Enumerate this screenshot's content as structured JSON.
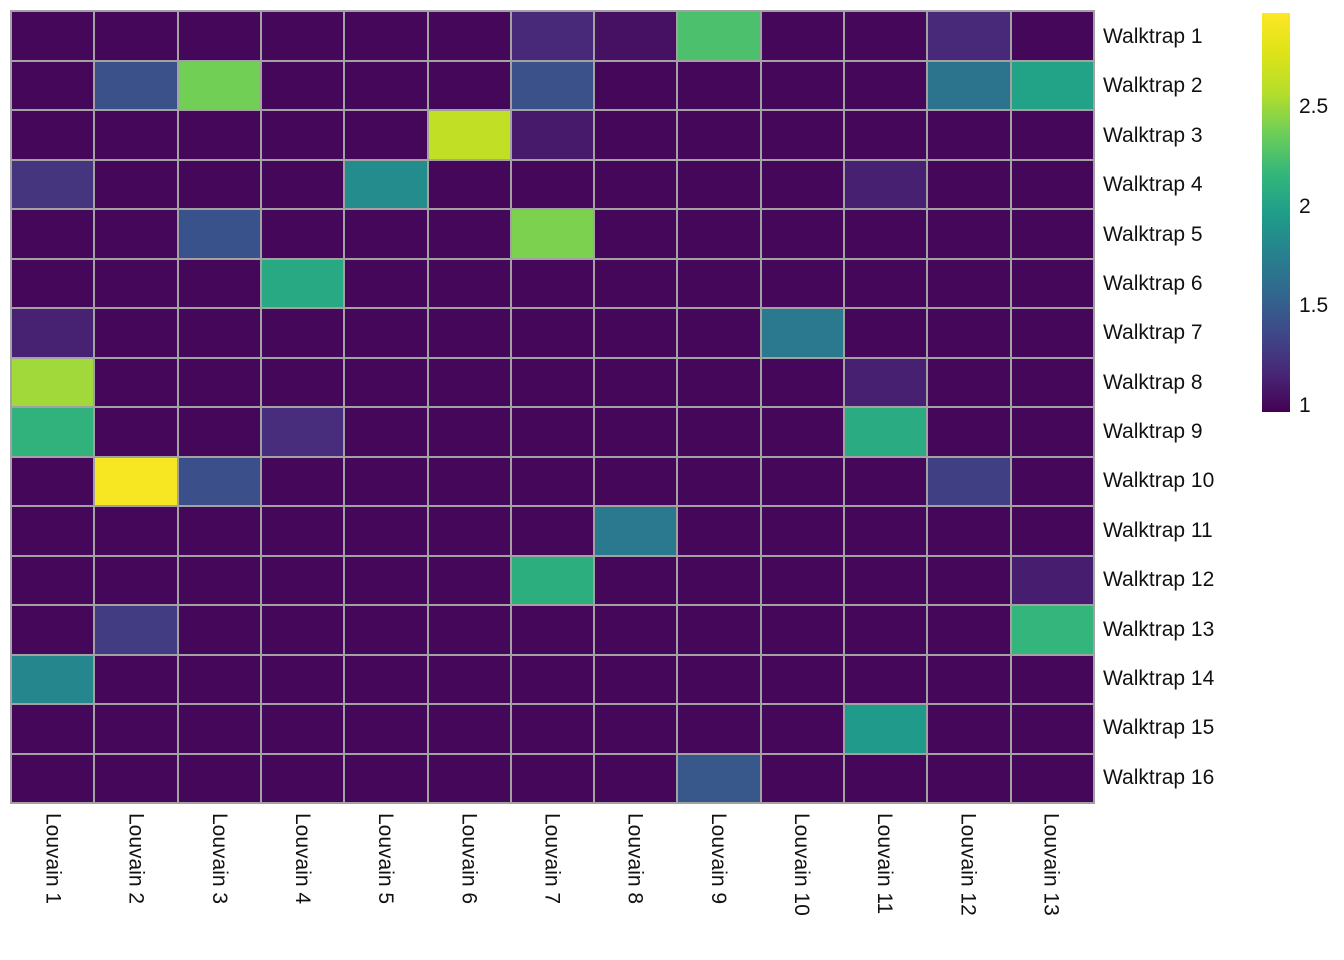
{
  "chart_data": {
    "type": "heatmap",
    "title": "",
    "xlabel": "",
    "ylabel": "",
    "rows": [
      "Walktrap 1",
      "Walktrap 2",
      "Walktrap 3",
      "Walktrap 4",
      "Walktrap 5",
      "Walktrap 6",
      "Walktrap 7",
      "Walktrap 8",
      "Walktrap 9",
      "Walktrap 10",
      "Walktrap 11",
      "Walktrap 12",
      "Walktrap 13",
      "Walktrap 14",
      "Walktrap 15",
      "Walktrap 16"
    ],
    "cols": [
      "Louvain 1",
      "Louvain 2",
      "Louvain 3",
      "Louvain 4",
      "Louvain 5",
      "Louvain 6",
      "Louvain 7",
      "Louvain 8",
      "Louvain 9",
      "Louvain 10",
      "Louvain 11",
      "Louvain 12",
      "Louvain 13"
    ],
    "values": [
      [
        1,
        1,
        1,
        1,
        1,
        1,
        1.17,
        1.05,
        2.25,
        1,
        1,
        1.17,
        1
      ],
      [
        1,
        1.42,
        2.38,
        1,
        1,
        1,
        1.42,
        1,
        1,
        1,
        1,
        1.66,
        2.0
      ],
      [
        1,
        1,
        1,
        1,
        1,
        2.63,
        1.1,
        1,
        1,
        1,
        1,
        1,
        1
      ],
      [
        1.24,
        1,
        1,
        1,
        1.84,
        1,
        1,
        1,
        1,
        1,
        1.13,
        1,
        1
      ],
      [
        1,
        1,
        1.43,
        1,
        1,
        1,
        2.41,
        1,
        1,
        1,
        1,
        1,
        1
      ],
      [
        1,
        1,
        1,
        2.05,
        1,
        1,
        1,
        1,
        1,
        1,
        1,
        1,
        1
      ],
      [
        1.14,
        1,
        1,
        1,
        1,
        1,
        1,
        1,
        1,
        1.7,
        1,
        1,
        1
      ],
      [
        2.51,
        1,
        1,
        1,
        1,
        1,
        1,
        1,
        1,
        1,
        1.13,
        1,
        1
      ],
      [
        2.13,
        1,
        1,
        1.2,
        1,
        1,
        1,
        1,
        1,
        1,
        2.07,
        1,
        1
      ],
      [
        1,
        2.93,
        1.41,
        1,
        1,
        1,
        1,
        1,
        1,
        1,
        1,
        1.31,
        1
      ],
      [
        1,
        1,
        1,
        1,
        1,
        1,
        1,
        1.7,
        1,
        1,
        1,
        1,
        1
      ],
      [
        1,
        1,
        1,
        1,
        1,
        1,
        2.1,
        1,
        1,
        1,
        1,
        1,
        1.12
      ],
      [
        1,
        1.3,
        1,
        1,
        1,
        1,
        1,
        1,
        1,
        1,
        1,
        1,
        2.15
      ],
      [
        1.8,
        1,
        1,
        1,
        1,
        1,
        1,
        1,
        1,
        1,
        1,
        1,
        1
      ],
      [
        1,
        1,
        1,
        1,
        1,
        1,
        1,
        1,
        1,
        1,
        1.94,
        1,
        1
      ],
      [
        1,
        1,
        1,
        1,
        1,
        1,
        1,
        1,
        1.46,
        1,
        1,
        1,
        1
      ]
    ],
    "colormap": "viridis",
    "colormap_stops": [
      [
        0.0,
        "#440154"
      ],
      [
        0.1,
        "#482878"
      ],
      [
        0.2,
        "#3e4989"
      ],
      [
        0.3,
        "#31688e"
      ],
      [
        0.4,
        "#26828e"
      ],
      [
        0.5,
        "#1f9e89"
      ],
      [
        0.6,
        "#35b779"
      ],
      [
        0.7,
        "#6ece58"
      ],
      [
        0.8,
        "#b5de2b"
      ],
      [
        0.9,
        "#dde318"
      ],
      [
        1.0,
        "#fde725"
      ]
    ],
    "scale": {
      "min": 0.97,
      "max": 2.97
    },
    "colorbar_ticks": [
      "1",
      "1.5",
      "2",
      "2.5"
    ],
    "colorbar_tick_values": [
      1,
      1.5,
      2,
      2.5
    ],
    "grid_color": "#a2a2a2",
    "background": "#ffffff",
    "legend_position": "right",
    "grid": true
  }
}
